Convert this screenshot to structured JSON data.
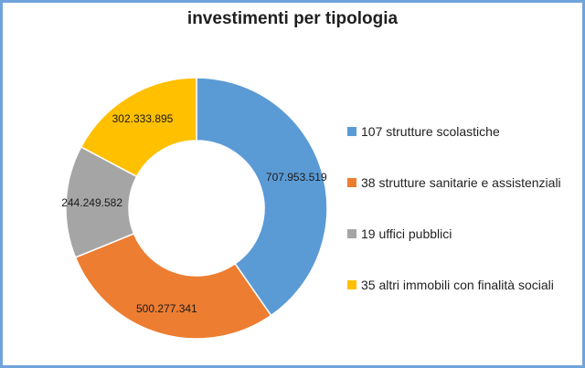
{
  "chart_data": {
    "type": "pie",
    "title": "investimenti per tipologia",
    "series": [
      {
        "name": "",
        "values": [
          707953519,
          500277341,
          244249582,
          302333895
        ]
      }
    ],
    "categories": [
      "107 strutture scolastiche",
      "38 strutture sanitarie e assistenziali",
      "19 uffici pubblici",
      "35 altri immobili con finalità sociali"
    ],
    "data_labels": [
      "707.953.519",
      "500.277.341",
      "244.249.582",
      "302.333.895"
    ],
    "colors": [
      "#5b9bd5",
      "#ed7d31",
      "#a5a5a5",
      "#ffc000"
    ],
    "donut": true,
    "legend_position": "right"
  }
}
